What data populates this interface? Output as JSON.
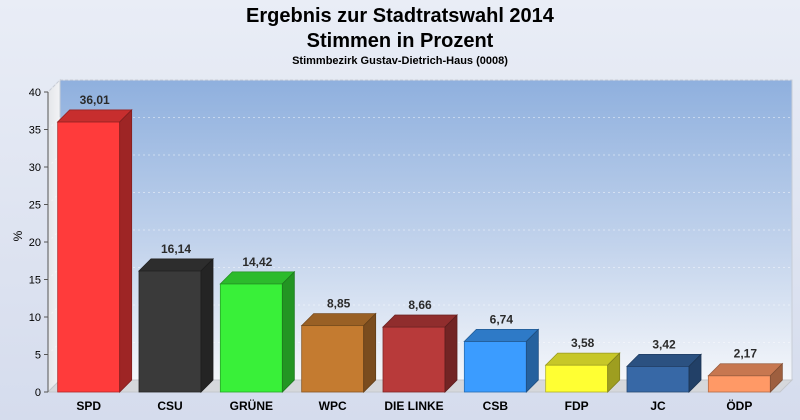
{
  "chart_data": {
    "type": "bar",
    "title": "Ergebnis zur Stadtratswahl 2014",
    "subtitle": "Stimmen in Prozent",
    "subtitle2": "Stimmbezirk Gustav-Dietrich-Haus (0008)",
    "ylabel": "%",
    "xlabel": "",
    "ylim": [
      0,
      40
    ],
    "yticks": [
      "0",
      "5",
      "10",
      "15",
      "20",
      "25",
      "30",
      "35",
      "40"
    ],
    "grid": true,
    "categories": [
      "SPD",
      "CSU",
      "GRÜNE",
      "WPC",
      "DIE LINKE",
      "CSB",
      "FDP",
      "JC",
      "ÖDP"
    ],
    "values": [
      36.01,
      16.14,
      14.42,
      8.85,
      8.66,
      6.74,
      3.58,
      3.42,
      2.17
    ],
    "value_labels": [
      "36,01",
      "16,14",
      "14,42",
      "8,85",
      "8,66",
      "6,74",
      "3,58",
      "3,42",
      "2,17"
    ],
    "colors": [
      "#ff3b3b",
      "#3a3a3a",
      "#39f039",
      "#c47b30",
      "#b83a3a",
      "#3b9cff",
      "#ffff33",
      "#3768a6",
      "#ff9966"
    ]
  }
}
